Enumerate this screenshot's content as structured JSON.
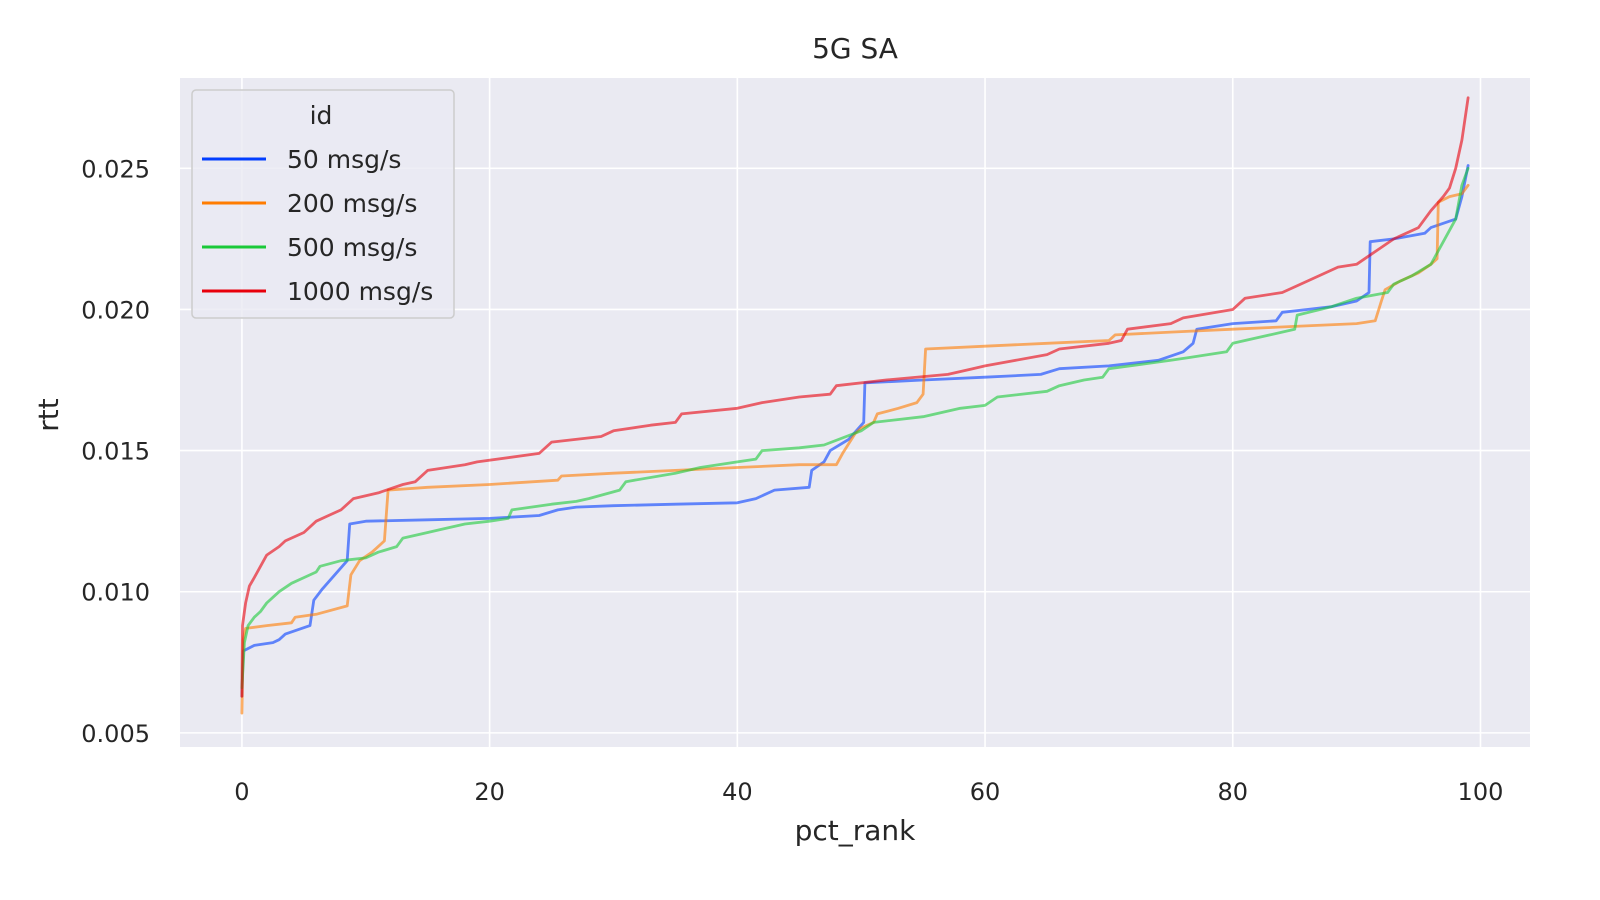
{
  "chart_data": {
    "type": "line",
    "title": "5G SA",
    "xlabel": "pct_rank",
    "ylabel": "rtt",
    "xlim": [
      -5,
      104
    ],
    "ylim": [
      0.0045,
      0.0282
    ],
    "x_ticks": [
      0,
      20,
      40,
      60,
      80,
      100
    ],
    "x_tick_labels": [
      "0",
      "20",
      "40",
      "60",
      "80",
      "100"
    ],
    "y_ticks": [
      0.005,
      0.01,
      0.015,
      0.02,
      0.025
    ],
    "y_tick_labels": [
      "0.005",
      "0.010",
      "0.015",
      "0.020",
      "0.025"
    ],
    "grid": true,
    "legend_title": "id",
    "legend_position": "top-left",
    "background_color": "#eaeaf2",
    "grid_color": "#ffffff",
    "series": [
      {
        "name": "50 msg/s",
        "color": "#023eff",
        "points": [
          [
            0,
            0.0063
          ],
          [
            0.1,
            0.0079
          ],
          [
            1,
            0.0081
          ],
          [
            2.5,
            0.0082
          ],
          [
            3,
            0.0083
          ],
          [
            3.5,
            0.0085
          ],
          [
            5.5,
            0.0088
          ],
          [
            5.8,
            0.0097
          ],
          [
            6.5,
            0.0101
          ],
          [
            7.5,
            0.0106
          ],
          [
            8.5,
            0.0111
          ],
          [
            8.7,
            0.0124
          ],
          [
            10,
            0.0125
          ],
          [
            15,
            0.01255
          ],
          [
            20,
            0.0126
          ],
          [
            24,
            0.0127
          ],
          [
            25.5,
            0.0129
          ],
          [
            27,
            0.013
          ],
          [
            30,
            0.01305
          ],
          [
            35,
            0.0131
          ],
          [
            40,
            0.01315
          ],
          [
            41.5,
            0.0133
          ],
          [
            43,
            0.0136
          ],
          [
            45.8,
            0.0137
          ],
          [
            46,
            0.0143
          ],
          [
            47,
            0.0146
          ],
          [
            47.5,
            0.015
          ],
          [
            49,
            0.0154
          ],
          [
            50.2,
            0.016
          ],
          [
            50.3,
            0.0174
          ],
          [
            55,
            0.0175
          ],
          [
            60,
            0.0176
          ],
          [
            64.5,
            0.0177
          ],
          [
            66,
            0.0179
          ],
          [
            70,
            0.018
          ],
          [
            74,
            0.0182
          ],
          [
            76,
            0.0185
          ],
          [
            76.8,
            0.0188
          ],
          [
            77.1,
            0.0193
          ],
          [
            80,
            0.0195
          ],
          [
            83.5,
            0.0196
          ],
          [
            84,
            0.0199
          ],
          [
            86,
            0.02
          ],
          [
            88,
            0.0201
          ],
          [
            90,
            0.0203
          ],
          [
            91,
            0.0206
          ],
          [
            91.1,
            0.0224
          ],
          [
            93,
            0.0225
          ],
          [
            95.5,
            0.0227
          ],
          [
            96,
            0.0229
          ],
          [
            98,
            0.0232
          ],
          [
            98.5,
            0.024
          ],
          [
            99,
            0.0251
          ]
        ]
      },
      {
        "name": "200 msg/s",
        "color": "#ff7c00",
        "points": [
          [
            0,
            0.0057
          ],
          [
            0.1,
            0.0083
          ],
          [
            0.3,
            0.0087
          ],
          [
            2,
            0.0088
          ],
          [
            4,
            0.0089
          ],
          [
            4.3,
            0.0091
          ],
          [
            6,
            0.0092
          ],
          [
            8.5,
            0.0095
          ],
          [
            8.8,
            0.0106
          ],
          [
            9.5,
            0.0111
          ],
          [
            10.5,
            0.0114
          ],
          [
            11.5,
            0.0118
          ],
          [
            11.8,
            0.0136
          ],
          [
            15,
            0.0137
          ],
          [
            20,
            0.0138
          ],
          [
            25.5,
            0.01395
          ],
          [
            25.8,
            0.0141
          ],
          [
            30,
            0.0142
          ],
          [
            35,
            0.0143
          ],
          [
            40,
            0.0144
          ],
          [
            45,
            0.0145
          ],
          [
            48,
            0.0145
          ],
          [
            48.5,
            0.0149
          ],
          [
            49.5,
            0.0156
          ],
          [
            50,
            0.0158
          ],
          [
            51,
            0.016
          ],
          [
            51.3,
            0.0163
          ],
          [
            53,
            0.0165
          ],
          [
            54.5,
            0.0167
          ],
          [
            55,
            0.017
          ],
          [
            55.2,
            0.0186
          ],
          [
            60,
            0.0187
          ],
          [
            65,
            0.0188
          ],
          [
            70,
            0.0189
          ],
          [
            70.5,
            0.0191
          ],
          [
            75,
            0.0192
          ],
          [
            80,
            0.0193
          ],
          [
            85,
            0.0194
          ],
          [
            90,
            0.0195
          ],
          [
            91.5,
            0.0196
          ],
          [
            92,
            0.0203
          ],
          [
            92.3,
            0.0207
          ],
          [
            93.5,
            0.021
          ],
          [
            95,
            0.0213
          ],
          [
            96,
            0.0216
          ],
          [
            96.5,
            0.0218
          ],
          [
            96.6,
            0.0238
          ],
          [
            97.5,
            0.024
          ],
          [
            98.5,
            0.0241
          ],
          [
            99,
            0.0244
          ]
        ]
      },
      {
        "name": "500 msg/s",
        "color": "#1ac938",
        "points": [
          [
            0,
            0.0066
          ],
          [
            0.2,
            0.0082
          ],
          [
            0.5,
            0.0088
          ],
          [
            1,
            0.0091
          ],
          [
            1.5,
            0.0093
          ],
          [
            2,
            0.0096
          ],
          [
            3,
            0.01
          ],
          [
            4,
            0.0103
          ],
          [
            5,
            0.0105
          ],
          [
            6,
            0.0107
          ],
          [
            6.3,
            0.0109
          ],
          [
            8,
            0.0111
          ],
          [
            10,
            0.0112
          ],
          [
            11,
            0.0114
          ],
          [
            12.5,
            0.0116
          ],
          [
            13,
            0.0119
          ],
          [
            15,
            0.0121
          ],
          [
            16,
            0.0122
          ],
          [
            18,
            0.0124
          ],
          [
            20,
            0.0125
          ],
          [
            21.5,
            0.0126
          ],
          [
            21.8,
            0.0129
          ],
          [
            25,
            0.0131
          ],
          [
            27,
            0.0132
          ],
          [
            28,
            0.0133
          ],
          [
            30.5,
            0.0136
          ],
          [
            31,
            0.0139
          ],
          [
            35,
            0.0142
          ],
          [
            37,
            0.0144
          ],
          [
            40,
            0.0146
          ],
          [
            41.5,
            0.0147
          ],
          [
            42,
            0.015
          ],
          [
            45,
            0.0151
          ],
          [
            47,
            0.0152
          ],
          [
            50,
            0.0157
          ],
          [
            51,
            0.016
          ],
          [
            55,
            0.0162
          ],
          [
            58,
            0.0165
          ],
          [
            60,
            0.0166
          ],
          [
            61,
            0.0169
          ],
          [
            65,
            0.0171
          ],
          [
            66,
            0.0173
          ],
          [
            68,
            0.0175
          ],
          [
            69.5,
            0.0176
          ],
          [
            70,
            0.0179
          ],
          [
            75,
            0.0182
          ],
          [
            76.5,
            0.0183
          ],
          [
            79.5,
            0.0185
          ],
          [
            80,
            0.0188
          ],
          [
            83,
            0.0191
          ],
          [
            85,
            0.0193
          ],
          [
            85.2,
            0.0198
          ],
          [
            88,
            0.0201
          ],
          [
            90,
            0.0204
          ],
          [
            92.5,
            0.0206
          ],
          [
            93,
            0.0209
          ],
          [
            94.5,
            0.0212
          ],
          [
            96,
            0.0216
          ],
          [
            96.5,
            0.022
          ],
          [
            97,
            0.0224
          ],
          [
            98,
            0.0232
          ],
          [
            98.5,
            0.0244
          ],
          [
            99,
            0.025
          ]
        ]
      },
      {
        "name": "1000 msg/s",
        "color": "#e8000b",
        "points": [
          [
            0,
            0.0063
          ],
          [
            0.05,
            0.0088
          ],
          [
            0.3,
            0.0096
          ],
          [
            0.6,
            0.0102
          ],
          [
            1,
            0.0105
          ],
          [
            1.5,
            0.0109
          ],
          [
            2,
            0.0113
          ],
          [
            3,
            0.0116
          ],
          [
            3.5,
            0.0118
          ],
          [
            5,
            0.0121
          ],
          [
            6,
            0.0125
          ],
          [
            7,
            0.0127
          ],
          [
            8,
            0.0129
          ],
          [
            9,
            0.0133
          ],
          [
            11,
            0.0135
          ],
          [
            13,
            0.0138
          ],
          [
            14,
            0.0139
          ],
          [
            15,
            0.0143
          ],
          [
            18,
            0.0145
          ],
          [
            19,
            0.0146
          ],
          [
            24,
            0.0149
          ],
          [
            25,
            0.0153
          ],
          [
            29,
            0.0155
          ],
          [
            30,
            0.0157
          ],
          [
            33,
            0.0159
          ],
          [
            35,
            0.016
          ],
          [
            35.5,
            0.0163
          ],
          [
            40,
            0.0165
          ],
          [
            42,
            0.0167
          ],
          [
            45,
            0.0169
          ],
          [
            47.5,
            0.017
          ],
          [
            48,
            0.0173
          ],
          [
            52,
            0.0175
          ],
          [
            57,
            0.0177
          ],
          [
            59,
            0.0179
          ],
          [
            60,
            0.018
          ],
          [
            65,
            0.0184
          ],
          [
            66,
            0.0186
          ],
          [
            70,
            0.0188
          ],
          [
            71,
            0.0189
          ],
          [
            71.5,
            0.0193
          ],
          [
            75,
            0.0195
          ],
          [
            76,
            0.0197
          ],
          [
            80,
            0.02
          ],
          [
            81,
            0.0204
          ],
          [
            84,
            0.0206
          ],
          [
            85,
            0.0208
          ],
          [
            87,
            0.0212
          ],
          [
            88.5,
            0.0215
          ],
          [
            90,
            0.0216
          ],
          [
            91,
            0.0219
          ],
          [
            92,
            0.0222
          ],
          [
            93,
            0.0225
          ],
          [
            95,
            0.0229
          ],
          [
            96,
            0.0235
          ],
          [
            97,
            0.024
          ],
          [
            97.5,
            0.0243
          ],
          [
            98,
            0.025
          ],
          [
            98.5,
            0.026
          ],
          [
            99,
            0.0275
          ]
        ]
      }
    ]
  }
}
